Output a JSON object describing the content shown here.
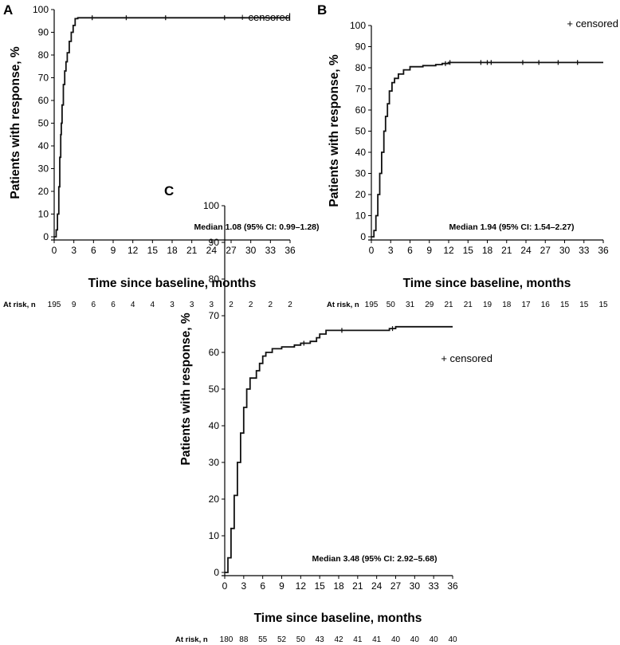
{
  "chart_data": [
    {
      "type": "line",
      "panel_label": "A",
      "xlabel": "Time since baseline, months",
      "ylabel": "Patients with response, %",
      "xlim": [
        0,
        36
      ],
      "ylim": [
        0,
        100
      ],
      "xticks": [
        0,
        3,
        6,
        9,
        12,
        15,
        18,
        21,
        24,
        27,
        30,
        33,
        36
      ],
      "yticks": [
        0,
        10,
        20,
        30,
        40,
        50,
        60,
        70,
        80,
        90,
        100
      ],
      "legend": "+ censored",
      "legend_position": "top-right",
      "annotation": "Median 1.08 (95% CI: 0.99–1.28)",
      "curve": {
        "x": [
          0,
          0.3,
          0.5,
          0.7,
          0.85,
          1.0,
          1.08,
          1.2,
          1.4,
          1.6,
          1.8,
          2.0,
          2.3,
          2.6,
          2.9,
          3.2,
          3.6,
          36
        ],
        "y": [
          0,
          3,
          10,
          22,
          35,
          45,
          50,
          58,
          67,
          73,
          77,
          81,
          86,
          90,
          93,
          96,
          96.4,
          96.4
        ]
      },
      "censored_x": [
        5.8,
        11,
        17,
        26
      ],
      "censored_y": [
        96.4,
        96.4,
        96.4,
        96.4
      ],
      "at_risk_label": "At risk, n",
      "at_risk": [
        "195",
        "9",
        "6",
        "6",
        "4",
        "4",
        "3",
        "3",
        "3",
        "2",
        "2",
        "2",
        "2"
      ]
    },
    {
      "type": "line",
      "panel_label": "B",
      "xlabel": "Time since baseline, months",
      "ylabel": "Patients with response, %",
      "xlim": [
        0,
        36
      ],
      "ylim": [
        0,
        100
      ],
      "xticks": [
        0,
        3,
        6,
        9,
        12,
        15,
        18,
        21,
        24,
        27,
        30,
        33,
        36
      ],
      "yticks": [
        0,
        10,
        20,
        30,
        40,
        50,
        60,
        70,
        80,
        90,
        100
      ],
      "legend": "+ censored",
      "legend_position": "top-right",
      "annotation": "Median 1.94 (95% CI: 1.54–2.27)",
      "curve": {
        "x": [
          0,
          0.4,
          0.7,
          1.0,
          1.3,
          1.6,
          1.94,
          2.2,
          2.5,
          2.8,
          3.2,
          3.6,
          4.2,
          5.0,
          6.0,
          8.0,
          10.0,
          11.0,
          12.0,
          36
        ],
        "y": [
          0,
          3,
          10,
          20,
          30,
          40,
          50,
          57,
          63,
          69,
          73,
          75,
          77,
          79,
          80.5,
          81,
          81.5,
          82,
          82.5,
          82.5
        ]
      },
      "censored_x": [
        11.5,
        12.2,
        17,
        18,
        18.6,
        23.5,
        26,
        29,
        32
      ],
      "censored_y": [
        82,
        82.5,
        82.5,
        82.5,
        82.5,
        82.5,
        82.5,
        82.5,
        82.5
      ],
      "at_risk_label": "At risk, n",
      "at_risk": [
        "195",
        "50",
        "31",
        "29",
        "21",
        "21",
        "19",
        "18",
        "17",
        "16",
        "15",
        "15",
        "15"
      ]
    },
    {
      "type": "line",
      "panel_label": "C",
      "xlabel": "Time since baseline, months",
      "ylabel": "Patients with response, %",
      "xlim": [
        0,
        36
      ],
      "ylim": [
        0,
        100
      ],
      "xticks": [
        0,
        3,
        6,
        9,
        12,
        15,
        18,
        21,
        24,
        27,
        30,
        33,
        36
      ],
      "yticks": [
        0,
        10,
        20,
        30,
        40,
        50,
        60,
        70,
        80,
        90,
        100
      ],
      "legend": "+ censored",
      "legend_position": "top-right",
      "annotation": "Median 3.48 (95% CI: 2.92–5.68)",
      "curve": {
        "x": [
          0,
          0.5,
          1.0,
          1.5,
          2.0,
          2.5,
          3.0,
          3.48,
          4.0,
          5.0,
          5.5,
          6.0,
          6.5,
          7.5,
          9.0,
          11.0,
          12.0,
          13.5,
          14.5,
          15.0,
          16.0,
          18.0,
          26.0,
          27.0,
          36.0
        ],
        "y": [
          0,
          4,
          12,
          21,
          30,
          38,
          45,
          50,
          53,
          55,
          57,
          59,
          60,
          61,
          61.5,
          62,
          62.5,
          63,
          64,
          65,
          66,
          66,
          66.5,
          67,
          67
        ]
      },
      "censored_x": [
        12.5,
        18.5,
        26.5
      ],
      "censored_y": [
        62.5,
        66,
        66.5
      ],
      "at_risk_label": "At risk, n",
      "at_risk": [
        "180",
        "88",
        "55",
        "52",
        "50",
        "43",
        "42",
        "41",
        "41",
        "40",
        "40",
        "40",
        "40"
      ]
    }
  ]
}
